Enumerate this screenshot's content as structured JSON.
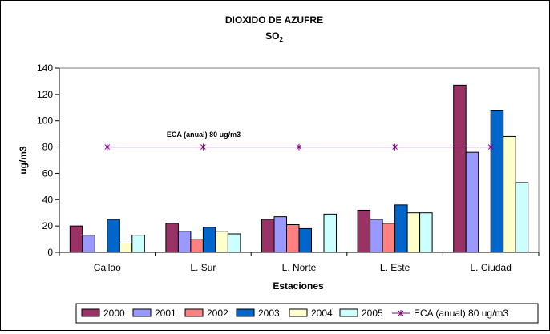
{
  "chart_data": {
    "type": "bar",
    "title": "DIOXIDO DE AZUFRE",
    "subtitle_main": "SO",
    "subtitle_sub": "2",
    "xlabel": "Estaciones",
    "ylabel": "ug/m3",
    "ylim": [
      0,
      140
    ],
    "yticks": [
      0,
      20,
      40,
      60,
      80,
      100,
      120,
      140
    ],
    "categories": [
      "Callao",
      "L. Sur",
      "L. Norte",
      "L. Este",
      "L. Ciudad"
    ],
    "grid": false,
    "legend_position": "bottom",
    "series": [
      {
        "name": "2000",
        "color": "#993366",
        "values": [
          20,
          22,
          25,
          32,
          127
        ]
      },
      {
        "name": "2001",
        "color": "#9999ff",
        "values": [
          13,
          16,
          27,
          25,
          76
        ]
      },
      {
        "name": "2002",
        "color": "#ff8080",
        "values": [
          null,
          10,
          21,
          22,
          null
        ]
      },
      {
        "name": "2003",
        "color": "#0066cc",
        "values": [
          25,
          19,
          18,
          36,
          108
        ]
      },
      {
        "name": "2004",
        "color": "#ffffcc",
        "values": [
          7,
          16,
          null,
          30,
          88
        ]
      },
      {
        "name": "2005",
        "color": "#ccffff",
        "values": [
          13,
          14,
          29,
          30,
          53
        ]
      }
    ],
    "reference_line": {
      "name": "ECA (anual) 80 ug/m3",
      "value": 80,
      "color": "#800080",
      "label": "ECA (anual) 80 ug/m3"
    }
  }
}
